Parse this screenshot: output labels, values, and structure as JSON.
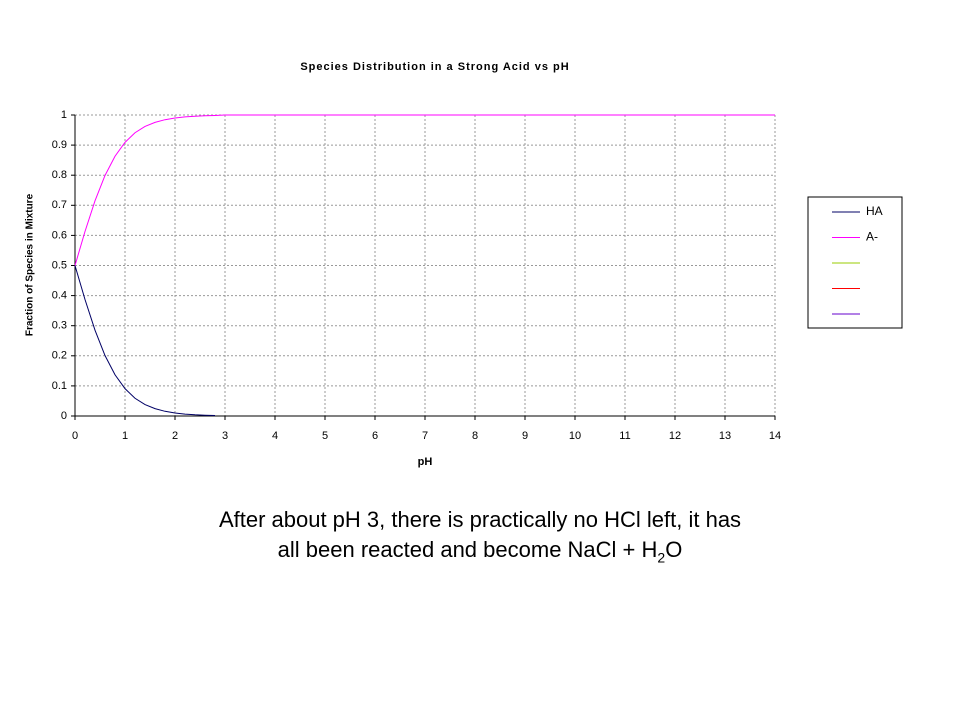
{
  "chart_data": {
    "type": "line",
    "title": "Species Distribution in a Strong Acid vs pH",
    "xlabel": "pH",
    "ylabel": "Fraction of Species in Mixture",
    "x": [
      0,
      0.2,
      0.4,
      0.6,
      0.8,
      1.0,
      1.2,
      1.4,
      1.6,
      1.8,
      2.0,
      2.2,
      2.4,
      2.6,
      2.8,
      3,
      4,
      5,
      6,
      7,
      8,
      9,
      10,
      11,
      12,
      13,
      14
    ],
    "series": [
      {
        "name": "HA",
        "color": "#000066",
        "values": [
          0.5,
          0.387,
          0.285,
          0.201,
          0.137,
          0.091,
          0.059,
          0.038,
          0.0245,
          0.0156,
          0.0099,
          0.0063,
          0.004,
          0.0025,
          0.0016,
          null,
          null,
          null,
          null,
          null,
          null,
          null,
          null,
          null,
          null,
          null,
          null
        ]
      },
      {
        "name": "A-",
        "color": "#ff00ff",
        "values": [
          0.5,
          0.613,
          0.715,
          0.799,
          0.863,
          0.909,
          0.941,
          0.962,
          0.9755,
          0.9844,
          0.9901,
          0.9937,
          0.996,
          0.9975,
          0.9984,
          1,
          1,
          1,
          1,
          1,
          1,
          1,
          1,
          1,
          1,
          1,
          1
        ]
      }
    ],
    "unnamed_legend_colors": [
      "#99cc00",
      "#ff0000",
      "#6600cc"
    ],
    "xlim": [
      0,
      14
    ],
    "xticks": [
      0,
      1,
      2,
      3,
      4,
      5,
      6,
      7,
      8,
      9,
      10,
      11,
      12,
      13,
      14
    ],
    "ylim": [
      0,
      1
    ],
    "yticks": [
      0,
      0.1,
      0.2,
      0.3,
      0.4,
      0.5,
      0.6,
      0.7,
      0.8,
      0.9,
      1
    ],
    "grid": true,
    "legend": "right"
  },
  "caption": {
    "line1": "After about pH 3, there is practically no HCl left, it has",
    "line2": "all been reacted and become NaCl + H",
    "subscript": "2",
    "tail": "O"
  }
}
